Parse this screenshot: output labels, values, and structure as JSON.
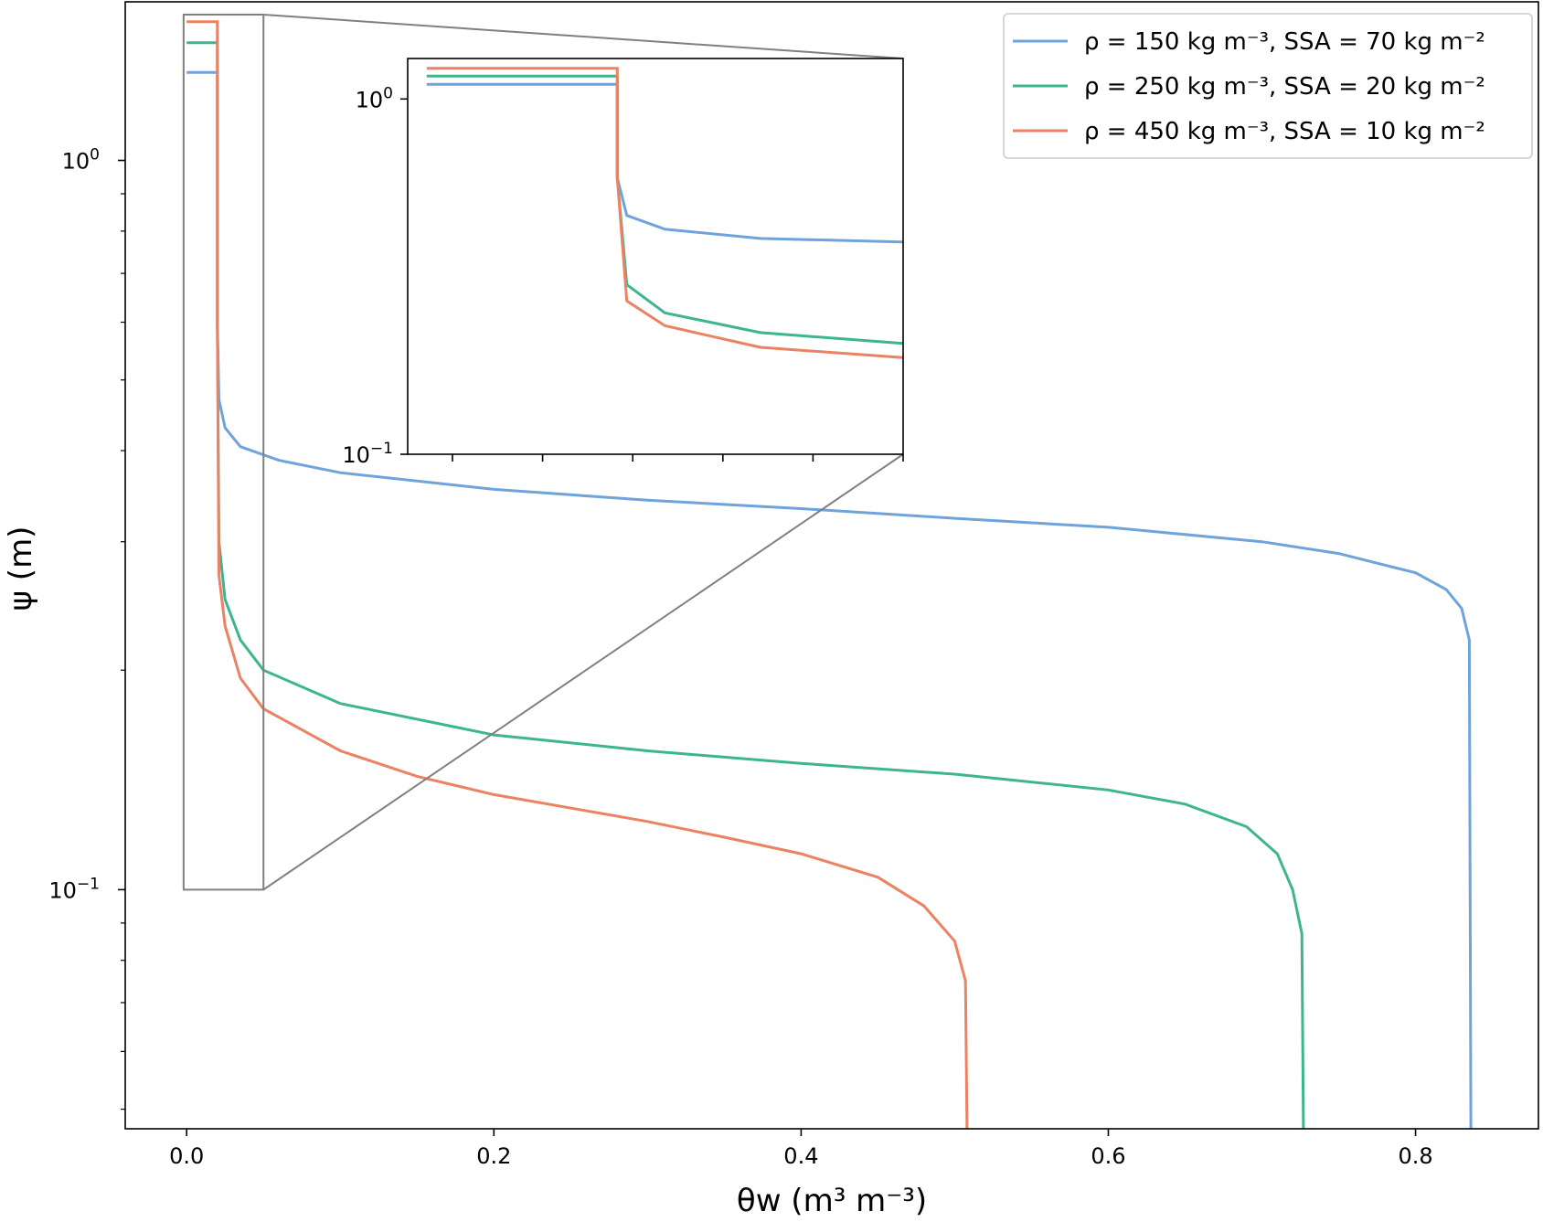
{
  "chart_data": {
    "type": "line",
    "xlabel": "θw (m³ m⁻³)",
    "ylabel": "ψ (m)",
    "xscale": "linear",
    "yscale": "log",
    "xlim": [
      -0.04,
      0.88
    ],
    "ylim": [
      0.047,
      1.65
    ],
    "xticks": [
      0.0,
      0.2,
      0.4,
      0.6,
      0.8
    ],
    "xtick_labels": [
      "0.0",
      "0.2",
      "0.4",
      "0.6",
      "0.8"
    ],
    "yticks": [
      0.1,
      1.0
    ],
    "grid": false,
    "legend_position": "top-right",
    "series": [
      {
        "name": "ρ = 150 kg m⁻³, SSA = 70 kg m⁻²",
        "color": "#6fa3db",
        "points": [
          [
            0.0,
            1.32
          ],
          [
            0.02,
            1.32
          ],
          [
            0.02,
            0.6
          ],
          [
            0.021,
            0.47
          ],
          [
            0.025,
            0.43
          ],
          [
            0.035,
            0.405
          ],
          [
            0.06,
            0.388
          ],
          [
            0.1,
            0.373
          ],
          [
            0.2,
            0.354
          ],
          [
            0.3,
            0.342
          ],
          [
            0.4,
            0.333
          ],
          [
            0.5,
            0.323
          ],
          [
            0.6,
            0.314
          ],
          [
            0.7,
            0.3
          ],
          [
            0.75,
            0.289
          ],
          [
            0.8,
            0.272
          ],
          [
            0.82,
            0.258
          ],
          [
            0.83,
            0.243
          ],
          [
            0.835,
            0.22
          ],
          [
            0.836,
            0.047
          ]
        ]
      },
      {
        "name": "ρ = 250 kg m⁻³, SSA = 20 kg m⁻²",
        "color": "#3db58e",
        "points": [
          [
            0.0,
            1.45
          ],
          [
            0.02,
            1.45
          ],
          [
            0.02,
            0.6
          ],
          [
            0.021,
            0.3
          ],
          [
            0.025,
            0.25
          ],
          [
            0.035,
            0.22
          ],
          [
            0.05,
            0.2
          ],
          [
            0.1,
            0.18
          ],
          [
            0.2,
            0.163
          ],
          [
            0.3,
            0.155
          ],
          [
            0.4,
            0.149
          ],
          [
            0.5,
            0.144
          ],
          [
            0.6,
            0.137
          ],
          [
            0.65,
            0.131
          ],
          [
            0.69,
            0.122
          ],
          [
            0.71,
            0.112
          ],
          [
            0.72,
            0.1
          ],
          [
            0.726,
            0.087
          ],
          [
            0.727,
            0.047
          ]
        ]
      },
      {
        "name": "ρ = 450 kg m⁻³, SSA = 10 kg m⁻²",
        "color": "#ea8263",
        "points": [
          [
            0.0,
            1.55
          ],
          [
            0.02,
            1.55
          ],
          [
            0.02,
            0.6
          ],
          [
            0.021,
            0.27
          ],
          [
            0.025,
            0.23
          ],
          [
            0.035,
            0.195
          ],
          [
            0.05,
            0.177
          ],
          [
            0.1,
            0.155
          ],
          [
            0.15,
            0.143
          ],
          [
            0.2,
            0.135
          ],
          [
            0.3,
            0.124
          ],
          [
            0.35,
            0.118
          ],
          [
            0.4,
            0.112
          ],
          [
            0.45,
            0.104
          ],
          [
            0.48,
            0.095
          ],
          [
            0.5,
            0.085
          ],
          [
            0.507,
            0.075
          ],
          [
            0.508,
            0.047
          ]
        ]
      }
    ],
    "inset": {
      "xlim": [
        -0.002,
        0.05
      ],
      "ylim": [
        0.1,
        1.3
      ],
      "yticks": [
        0.1,
        1.0
      ],
      "xtick_count": 6,
      "series_points": [
        [
          [
            0.0,
            1.1
          ],
          [
            0.02,
            1.1
          ],
          [
            0.02,
            0.6
          ],
          [
            0.021,
            0.47
          ],
          [
            0.025,
            0.43
          ],
          [
            0.035,
            0.405
          ],
          [
            0.05,
            0.396
          ]
        ],
        [
          [
            0.0,
            1.16
          ],
          [
            0.02,
            1.16
          ],
          [
            0.02,
            0.6
          ],
          [
            0.021,
            0.3
          ],
          [
            0.025,
            0.25
          ],
          [
            0.035,
            0.22
          ],
          [
            0.05,
            0.205
          ]
        ],
        [
          [
            0.0,
            1.22
          ],
          [
            0.02,
            1.22
          ],
          [
            0.02,
            0.6
          ],
          [
            0.021,
            0.27
          ],
          [
            0.025,
            0.23
          ],
          [
            0.035,
            0.2
          ],
          [
            0.05,
            0.187
          ]
        ]
      ]
    }
  }
}
